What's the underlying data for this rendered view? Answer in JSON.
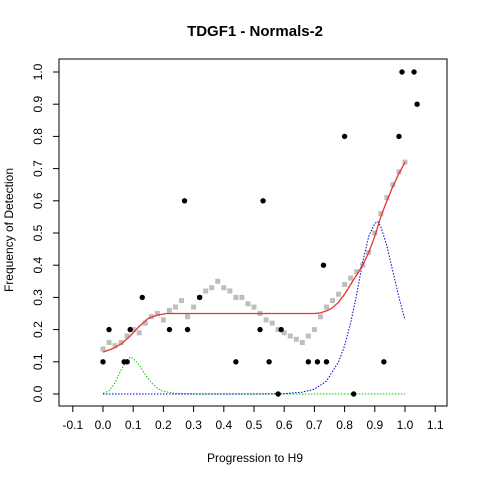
{
  "chart_data": {
    "type": "scatter",
    "title": "TDGF1 - Normals-2",
    "xlabel": "Progression to H9",
    "ylabel": "Frequency of Detection",
    "xlim": [
      -0.1,
      1.1
    ],
    "ylim": [
      0.0,
      1.0
    ],
    "xticks": [
      "-0.1",
      "0.0",
      "0.1",
      "0.2",
      "0.3",
      "0.4",
      "0.5",
      "0.6",
      "0.7",
      "0.8",
      "0.9",
      "1.0",
      "1.1"
    ],
    "yticks": [
      "0.0",
      "0.1",
      "0.2",
      "0.3",
      "0.4",
      "0.5",
      "0.6",
      "0.7",
      "0.8",
      "0.9",
      "1.0"
    ],
    "grid": false,
    "legend": "none",
    "colors": {
      "points": "#000000",
      "moving_average": "#bebebe",
      "fit": "#e8352a",
      "early_density": "#00cc00",
      "late_density": "#0000cc"
    },
    "series": [
      {
        "type": "scatter",
        "points": [
          [
            0.0,
            0.1
          ],
          [
            0.02,
            0.2
          ],
          [
            0.07,
            0.1
          ],
          [
            0.08,
            0.1
          ],
          [
            0.09,
            0.2
          ],
          [
            0.13,
            0.3
          ],
          [
            0.22,
            0.2
          ],
          [
            0.27,
            0.6
          ],
          [
            0.28,
            0.2
          ],
          [
            0.32,
            0.3
          ],
          [
            0.44,
            0.1
          ],
          [
            0.52,
            0.2
          ],
          [
            0.53,
            0.6
          ],
          [
            0.55,
            0.1
          ],
          [
            0.58,
            0.0
          ],
          [
            0.59,
            0.2
          ],
          [
            0.68,
            0.1
          ],
          [
            0.71,
            0.1
          ],
          [
            0.73,
            0.4
          ],
          [
            0.74,
            0.1
          ],
          [
            0.8,
            0.8
          ],
          [
            0.83,
            0.0
          ],
          [
            0.93,
            0.1
          ],
          [
            0.98,
            0.8
          ],
          [
            0.99,
            1.0
          ],
          [
            1.03,
            1.0
          ],
          [
            1.04,
            0.9
          ]
        ]
      },
      {
        "type": "moving-average",
        "points": [
          [
            0.0,
            0.14
          ],
          [
            0.02,
            0.16
          ],
          [
            0.04,
            0.15
          ],
          [
            0.06,
            0.16
          ],
          [
            0.08,
            0.18
          ],
          [
            0.1,
            0.2
          ],
          [
            0.12,
            0.19
          ],
          [
            0.14,
            0.22
          ],
          [
            0.16,
            0.24
          ],
          [
            0.18,
            0.25
          ],
          [
            0.2,
            0.23
          ],
          [
            0.22,
            0.26
          ],
          [
            0.24,
            0.27
          ],
          [
            0.26,
            0.29
          ],
          [
            0.28,
            0.24
          ],
          [
            0.3,
            0.27
          ],
          [
            0.32,
            0.3
          ],
          [
            0.34,
            0.32
          ],
          [
            0.36,
            0.33
          ],
          [
            0.38,
            0.35
          ],
          [
            0.4,
            0.33
          ],
          [
            0.42,
            0.32
          ],
          [
            0.44,
            0.3
          ],
          [
            0.46,
            0.3
          ],
          [
            0.48,
            0.28
          ],
          [
            0.5,
            0.27
          ],
          [
            0.52,
            0.25
          ],
          [
            0.54,
            0.23
          ],
          [
            0.56,
            0.22
          ],
          [
            0.58,
            0.2
          ],
          [
            0.6,
            0.19
          ],
          [
            0.62,
            0.18
          ],
          [
            0.64,
            0.17
          ],
          [
            0.66,
            0.16
          ],
          [
            0.68,
            0.18
          ],
          [
            0.7,
            0.2
          ],
          [
            0.72,
            0.24
          ],
          [
            0.74,
            0.27
          ],
          [
            0.76,
            0.29
          ],
          [
            0.78,
            0.31
          ],
          [
            0.8,
            0.34
          ],
          [
            0.82,
            0.36
          ],
          [
            0.84,
            0.38
          ],
          [
            0.86,
            0.4
          ],
          [
            0.88,
            0.44
          ],
          [
            0.9,
            0.5
          ],
          [
            0.92,
            0.56
          ],
          [
            0.94,
            0.61
          ],
          [
            0.96,
            0.65
          ],
          [
            0.98,
            0.69
          ],
          [
            1.0,
            0.72
          ]
        ]
      },
      {
        "type": "fit-line",
        "points": [
          [
            0.0,
            0.13
          ],
          [
            0.03,
            0.14
          ],
          [
            0.06,
            0.155
          ],
          [
            0.09,
            0.18
          ],
          [
            0.12,
            0.21
          ],
          [
            0.15,
            0.235
          ],
          [
            0.18,
            0.245
          ],
          [
            0.21,
            0.25
          ],
          [
            0.3,
            0.25
          ],
          [
            0.4,
            0.25
          ],
          [
            0.5,
            0.25
          ],
          [
            0.6,
            0.25
          ],
          [
            0.7,
            0.25
          ],
          [
            0.72,
            0.252
          ],
          [
            0.74,
            0.258
          ],
          [
            0.76,
            0.268
          ],
          [
            0.78,
            0.285
          ],
          [
            0.8,
            0.31
          ],
          [
            0.82,
            0.34
          ],
          [
            0.84,
            0.37
          ],
          [
            0.86,
            0.4
          ],
          [
            0.88,
            0.44
          ],
          [
            0.9,
            0.49
          ],
          [
            0.92,
            0.55
          ],
          [
            0.94,
            0.6
          ],
          [
            0.96,
            0.645
          ],
          [
            0.98,
            0.685
          ],
          [
            1.0,
            0.72
          ]
        ]
      },
      {
        "type": "density-green",
        "points": [
          [
            0.0,
            0.002
          ],
          [
            0.02,
            0.01
          ],
          [
            0.04,
            0.035
          ],
          [
            0.06,
            0.075
          ],
          [
            0.08,
            0.105
          ],
          [
            0.09,
            0.115
          ],
          [
            0.1,
            0.11
          ],
          [
            0.12,
            0.09
          ],
          [
            0.14,
            0.06
          ],
          [
            0.16,
            0.035
          ],
          [
            0.18,
            0.018
          ],
          [
            0.2,
            0.008
          ],
          [
            0.24,
            0.002
          ],
          [
            0.3,
            0.0
          ],
          [
            0.5,
            0.0
          ],
          [
            0.7,
            0.0
          ],
          [
            0.9,
            0.0
          ],
          [
            1.0,
            0.0
          ]
        ]
      },
      {
        "type": "density-blue",
        "points": [
          [
            0.0,
            0.0
          ],
          [
            0.5,
            0.0
          ],
          [
            0.6,
            0.001
          ],
          [
            0.66,
            0.006
          ],
          [
            0.7,
            0.015
          ],
          [
            0.74,
            0.04
          ],
          [
            0.78,
            0.1
          ],
          [
            0.8,
            0.15
          ],
          [
            0.82,
            0.22
          ],
          [
            0.84,
            0.31
          ],
          [
            0.86,
            0.41
          ],
          [
            0.88,
            0.49
          ],
          [
            0.9,
            0.53
          ],
          [
            0.91,
            0.535
          ],
          [
            0.92,
            0.52
          ],
          [
            0.94,
            0.46
          ],
          [
            0.96,
            0.38
          ],
          [
            0.98,
            0.3
          ],
          [
            1.0,
            0.23
          ]
        ]
      }
    ]
  }
}
